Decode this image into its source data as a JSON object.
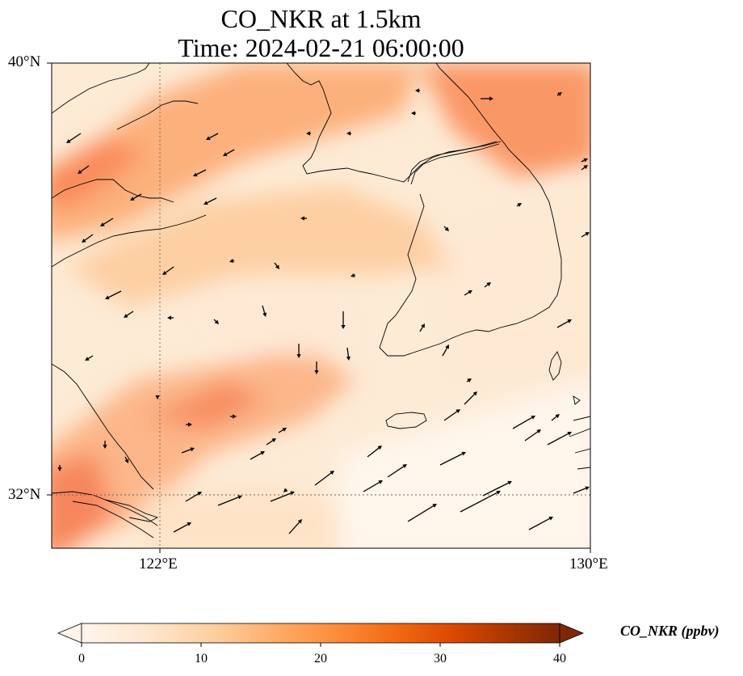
{
  "title_line1": "CO_NKR at 1.5km",
  "title_line2": "Time: 2024-02-21 06:00:00",
  "map": {
    "lon_range": [
      120,
      130
    ],
    "lat_range": [
      31,
      40
    ],
    "lat_labels": [
      {
        "value": 40,
        "text": "40°N"
      },
      {
        "value": 32,
        "text": "32°N"
      }
    ],
    "lon_labels": [
      {
        "value": 122,
        "text": "122°E"
      },
      {
        "value": 130,
        "text": "130°E"
      }
    ],
    "gridlines": {
      "lon": [
        122
      ],
      "lat": [
        32
      ]
    }
  },
  "colorbar": {
    "label": "CO_NKR (ppbv)",
    "min": 0,
    "max": 40,
    "ticks": [
      "0",
      "10",
      "20",
      "30",
      "40"
    ],
    "extend": "both",
    "colors": [
      "#fff5eb",
      "#fee6ce",
      "#fdd0a2",
      "#fdae6b",
      "#fd8d3c",
      "#f16913",
      "#d94801",
      "#a63603",
      "#7f2704"
    ]
  }
}
